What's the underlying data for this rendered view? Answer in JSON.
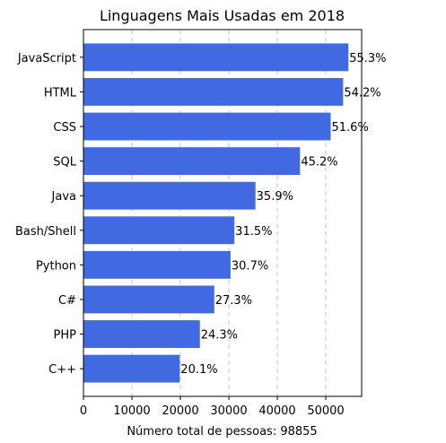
{
  "chart_data": {
    "type": "bar",
    "orientation": "horizontal",
    "title": "Linguagens Mais Usadas em 2018",
    "xlabel": "Número total de pessoas: 98855",
    "ylabel": "",
    "categories": [
      "JavaScript",
      "HTML",
      "CSS",
      "SQL",
      "Java",
      "Bash/Shell",
      "Python",
      "C#",
      "PHP",
      "C++"
    ],
    "values": [
      54667,
      53579,
      51009,
      44683,
      35489,
      31140,
      30348,
      26987,
      24022,
      19870
    ],
    "data_labels": [
      "55.3%",
      "54.2%",
      "51.6%",
      "45.2%",
      "35.9%",
      "31.5%",
      "30.7%",
      "27.3%",
      "24.3%",
      "20.1%"
    ],
    "xlim": [
      0,
      57400
    ],
    "xticks": [
      0,
      10000,
      20000,
      30000,
      40000,
      50000
    ],
    "xtick_labels": [
      "0",
      "10000",
      "20000",
      "30000",
      "40000",
      "50000"
    ],
    "grid": "x-axis dashed",
    "bar_color": "#4169e1"
  }
}
